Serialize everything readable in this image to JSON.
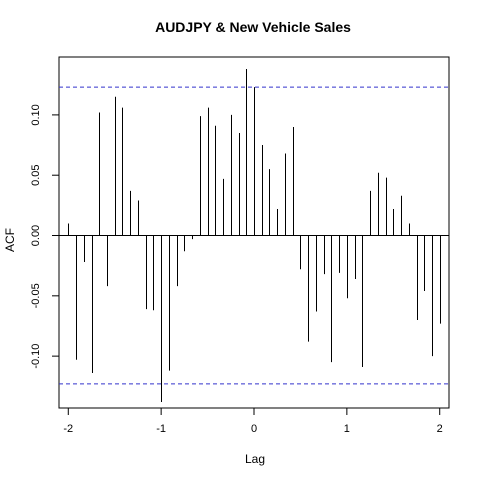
{
  "chart_data": {
    "type": "bar",
    "title": "AUDJPY & New Vehicle Sales",
    "xlabel": "Lag",
    "ylabel": "ACF",
    "xlim": [
      -2.1,
      2.1
    ],
    "ylim": [
      -0.143,
      0.148
    ],
    "xticks": [
      -2,
      -1,
      0,
      1,
      2
    ],
    "xtick_labels": [
      "-2",
      "-1",
      "0",
      "1",
      "2"
    ],
    "yticks": [
      -0.1,
      -0.05,
      0.0,
      0.05,
      0.1
    ],
    "ytick_labels": [
      "-0.10",
      "-0.05",
      "0.00",
      "0.05",
      "0.10"
    ],
    "confidence_bound": 0.123,
    "confidence_color": "#3333cc",
    "lags": [
      -2.0,
      -1.9167,
      -1.8333,
      -1.75,
      -1.6667,
      -1.5833,
      -1.5,
      -1.4167,
      -1.3333,
      -1.25,
      -1.1667,
      -1.0833,
      -1.0,
      -0.9167,
      -0.8333,
      -0.75,
      -0.6667,
      -0.5833,
      -0.5,
      -0.4167,
      -0.3333,
      -0.25,
      -0.1667,
      -0.0833,
      0.0,
      0.0833,
      0.1667,
      0.25,
      0.3333,
      0.4167,
      0.5,
      0.5833,
      0.6667,
      0.75,
      0.8333,
      0.9167,
      1.0,
      1.0833,
      1.1667,
      1.25,
      1.3333,
      1.4167,
      1.5,
      1.5833,
      1.6667,
      1.75,
      1.8333,
      1.9167,
      2.0
    ],
    "values": [
      0.01,
      -0.103,
      -0.022,
      -0.114,
      0.102,
      -0.042,
      0.115,
      0.106,
      0.037,
      0.029,
      -0.061,
      -0.062,
      -0.138,
      -0.112,
      -0.042,
      -0.013,
      -0.003,
      0.099,
      0.106,
      0.091,
      0.047,
      0.1,
      0.085,
      0.138,
      0.123,
      0.075,
      0.055,
      0.022,
      0.068,
      0.09,
      -0.028,
      -0.088,
      -0.063,
      -0.032,
      -0.105,
      -0.031,
      -0.052,
      -0.036,
      -0.109,
      0.037,
      0.052,
      0.048,
      0.022,
      0.033,
      0.01,
      -0.07,
      -0.046,
      -0.1,
      -0.073
    ]
  }
}
